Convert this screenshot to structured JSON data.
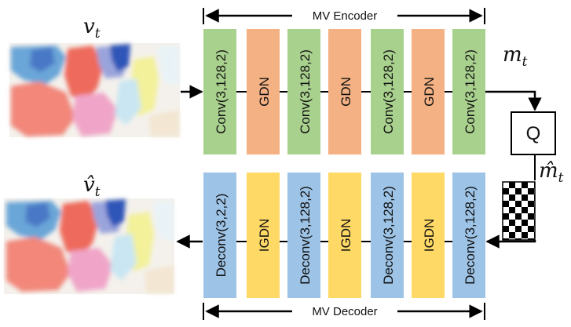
{
  "encoder": {
    "title": "MV Encoder",
    "blocks": [
      "Conv(3,128,2)",
      "GDN",
      "Conv(3,128,2)",
      "GDN",
      "Conv(3,128,2)",
      "GDN",
      "Conv(3,128,2)"
    ]
  },
  "decoder": {
    "title": "MV Decoder",
    "blocks": [
      "Deconv(3,2,2)",
      "IGDN",
      "Deconv(3,128,2)",
      "IGDN",
      "Deconv(3,128,2)",
      "IGDN",
      "Deconv(3,128,2)"
    ]
  },
  "quantizer": {
    "label": "Q"
  },
  "symbols": {
    "input": {
      "base": "v",
      "sub": "t"
    },
    "latent": {
      "base": "m",
      "sub": "t"
    },
    "quantized": {
      "base": "m̂",
      "sub": "t"
    },
    "output": {
      "base": "v̂",
      "sub": "t"
    }
  },
  "colors": {
    "conv": "#a9d18e",
    "gdn": "#f4b183",
    "deconv": "#9dc3e6",
    "igdn": "#ffd966",
    "line": "#000000"
  }
}
